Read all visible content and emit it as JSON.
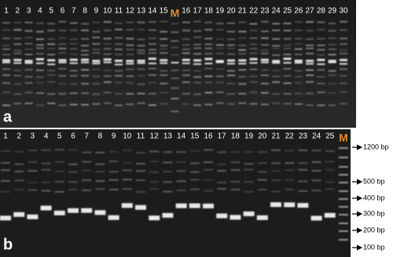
{
  "panel_a": {
    "label": "a",
    "lanes": [
      "1",
      "2",
      "3",
      "4",
      "5",
      "6",
      "7",
      "8",
      "9",
      "10",
      "11",
      "12",
      "13",
      "14",
      "15",
      "M",
      "16",
      "17",
      "18",
      "19",
      "20",
      "21",
      "22",
      "23",
      "24",
      "25",
      "26",
      "27",
      "28",
      "29",
      "30"
    ]
  },
  "panel_b": {
    "label": "b",
    "lanes": [
      "1",
      "2",
      "3",
      "4",
      "5",
      "6",
      "7",
      "8",
      "9",
      "10",
      "11",
      "12",
      "13",
      "14",
      "15",
      "16",
      "17",
      "18",
      "19",
      "20",
      "21",
      "22",
      "23",
      "24",
      "25",
      "M"
    ],
    "size_markers": [
      "1200 bp",
      "500 bp",
      "400 bp",
      "300 bp",
      "200 bp",
      "100 bp"
    ]
  }
}
